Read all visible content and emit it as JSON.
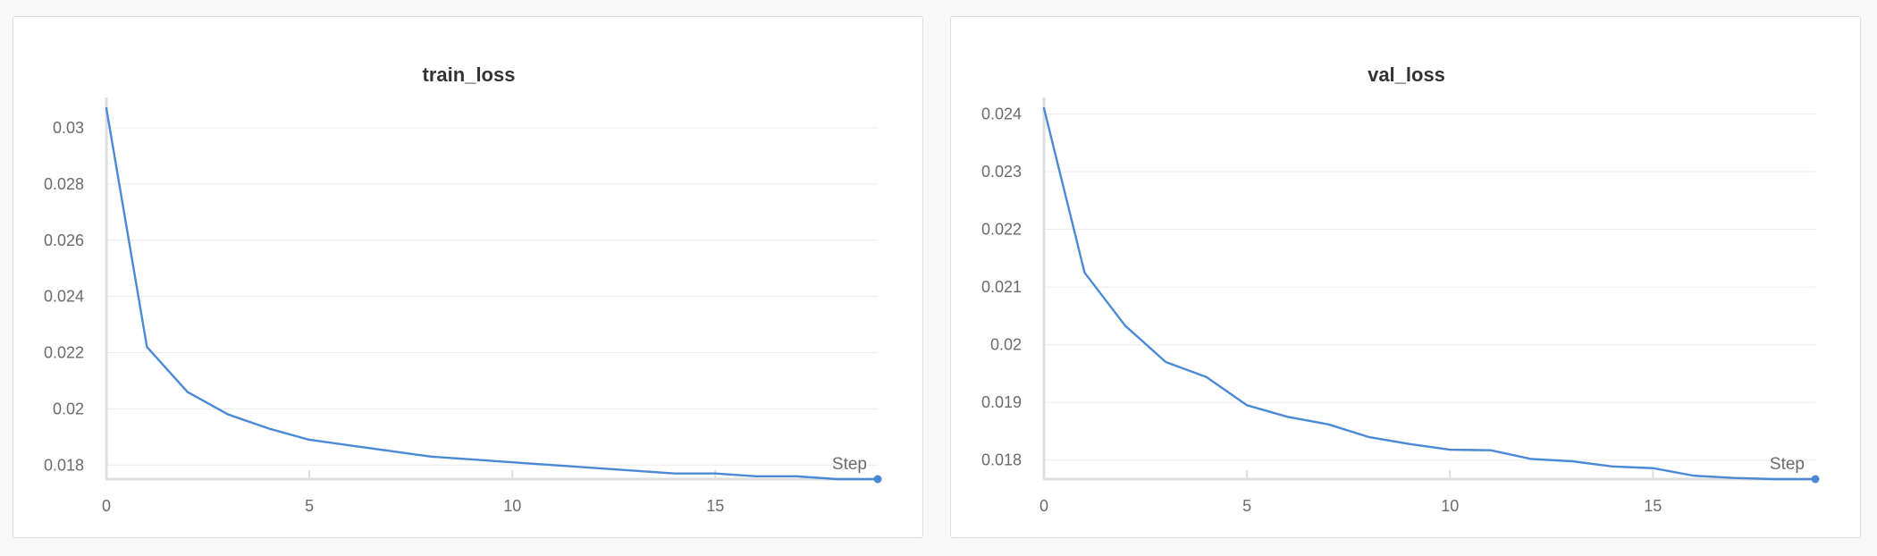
{
  "colors": {
    "series": "#4a89d6",
    "grid": "#ececec",
    "axis": "#dddddd",
    "text": "#6b6b6b",
    "title": "#333333"
  },
  "chart_data": [
    {
      "type": "line",
      "title": "train_loss",
      "xlabel": "Step",
      "ylabel": "",
      "xlim": [
        0,
        19
      ],
      "ylim": [
        0.0175,
        0.0307
      ],
      "xticks": [
        0,
        5,
        10,
        15
      ],
      "xtick_labels": [
        "0",
        "5",
        "10",
        "15"
      ],
      "yticks": [
        0.018,
        0.02,
        0.022,
        0.024,
        0.026,
        0.028,
        0.03
      ],
      "ytick_labels": [
        "0.018",
        "0.02",
        "0.022",
        "0.024",
        "0.026",
        "0.028",
        "0.03"
      ],
      "grid": true,
      "series": [
        {
          "x": [
            0,
            1,
            2,
            3,
            4,
            5,
            6,
            7,
            8,
            9,
            10,
            11,
            12,
            13,
            14,
            15,
            16,
            17,
            18,
            19
          ],
          "values": [
            0.0307,
            0.0222,
            0.0206,
            0.0198,
            0.0193,
            0.0189,
            0.0187,
            0.0185,
            0.0183,
            0.0182,
            0.0181,
            0.018,
            0.0179,
            0.0178,
            0.0177,
            0.0177,
            0.0176,
            0.0176,
            0.0175,
            0.0175
          ]
        }
      ]
    },
    {
      "type": "line",
      "title": "val_loss",
      "xlabel": "Step",
      "ylabel": "",
      "xlim": [
        0,
        19
      ],
      "ylim": [
        0.01767,
        0.0241
      ],
      "xticks": [
        0,
        5,
        10,
        15
      ],
      "xtick_labels": [
        "0",
        "5",
        "10",
        "15"
      ],
      "yticks": [
        0.018,
        0.019,
        0.02,
        0.021,
        0.022,
        0.023,
        0.024
      ],
      "ytick_labels": [
        "0.018",
        "0.019",
        "0.02",
        "0.021",
        "0.022",
        "0.023",
        "0.024"
      ],
      "grid": true,
      "series": [
        {
          "x": [
            0,
            1,
            2,
            3,
            4,
            5,
            6,
            7,
            8,
            9,
            10,
            11,
            12,
            13,
            14,
            15,
            16,
            17,
            18,
            19
          ],
          "values": [
            0.0241,
            0.02125,
            0.02033,
            0.0197,
            0.01944,
            0.01895,
            0.01875,
            0.01862,
            0.0184,
            0.01828,
            0.01818,
            0.01817,
            0.01802,
            0.01798,
            0.01789,
            0.01786,
            0.01773,
            0.01769,
            0.01767,
            0.01767
          ]
        }
      ]
    }
  ]
}
